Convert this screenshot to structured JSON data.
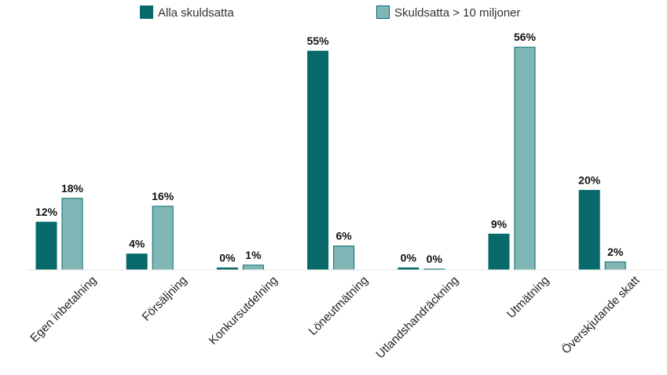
{
  "chart_data": {
    "type": "bar",
    "categories": [
      "Egen inbetalning",
      "Försäljning",
      "Konkursutdelning",
      "Löneutmätning",
      "Utlandshandräckning",
      "Utmätning",
      "Överskjutande skatt"
    ],
    "series": [
      {
        "name": "Alla skuldsatta",
        "values": [
          12,
          4,
          0.5,
          55,
          0.5,
          9,
          20
        ],
        "labels": [
          "12%",
          "4%",
          "0%",
          "55%",
          "0%",
          "9%",
          "20%"
        ],
        "color": "#07696a",
        "stroke": "#07696a"
      },
      {
        "name": "Skuldsatta > 10 miljoner",
        "values": [
          18,
          16,
          1.2,
          6,
          0.2,
          56,
          2
        ],
        "labels": [
          "18%",
          "16%",
          "1%",
          "6%",
          "0%",
          "56%",
          "2%"
        ],
        "color": "#80b6b6",
        "stroke": "#07696a"
      }
    ],
    "ylim": [
      0,
      58
    ],
    "grid": false,
    "legend": "top-center"
  }
}
